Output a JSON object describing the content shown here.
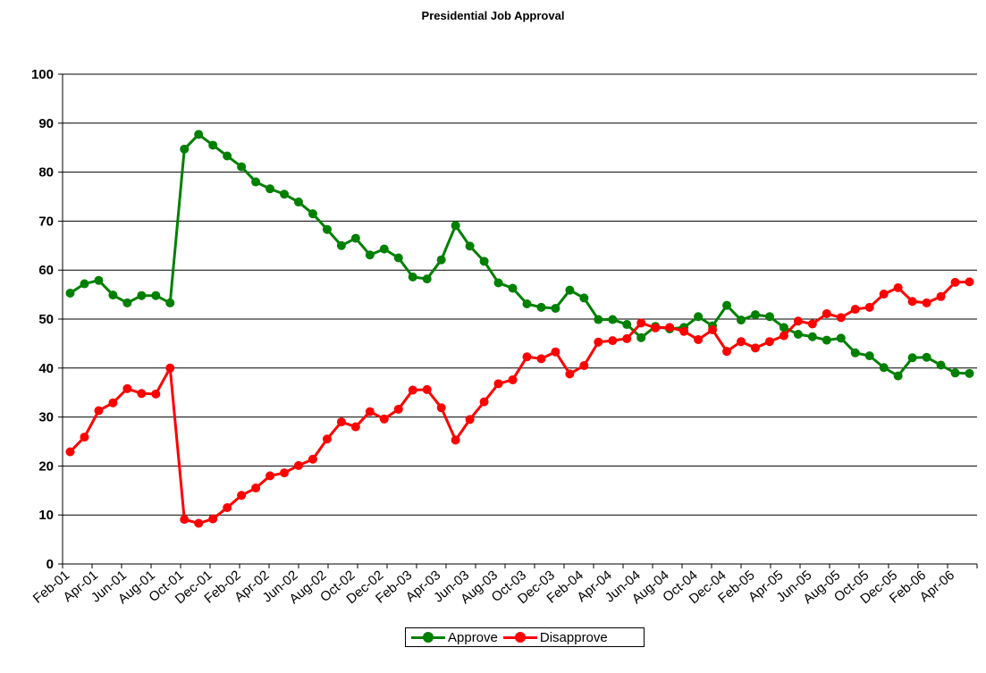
{
  "chart_data": {
    "type": "line",
    "title": "Presidential Job Approval",
    "xlabel": "",
    "ylabel": "",
    "ylim": [
      0,
      100
    ],
    "yticks": [
      0,
      10,
      20,
      30,
      40,
      50,
      60,
      70,
      80,
      90,
      100
    ],
    "grid": "horizontal",
    "legend_position": "bottom",
    "categories": [
      "Feb-01",
      "Mar-01",
      "Apr-01",
      "May-01",
      "Jun-01",
      "Jul-01",
      "Aug-01",
      "Sep-01",
      "Oct-01",
      "Oct-01",
      "Nov-01",
      "Dec-01",
      "Jan-02",
      "Feb-02",
      "Mar-02",
      "Apr-02",
      "May-02",
      "Jun-02",
      "Jul-02",
      "Aug-02",
      "Sep-02",
      "Oct-02",
      "Nov-02",
      "Dec-02",
      "Jan-03",
      "Feb-03",
      "Mar-03",
      "Apr-03",
      "May-03",
      "Jun-03",
      "Jul-03",
      "Aug-03",
      "Sep-03",
      "Oct-03",
      "Nov-03",
      "Dec-03",
      "Jan-04",
      "Feb-04",
      "Mar-04",
      "Apr-04",
      "May-04",
      "Jun-04",
      "Jul-04",
      "Aug-04",
      "Sep-04",
      "Oct-04",
      "Nov-04",
      "Dec-04",
      "Jan-05",
      "Feb-05",
      "Mar-05",
      "Apr-05",
      "May-05",
      "Jun-05",
      "Jul-05",
      "Aug-05",
      "Sep-05",
      "Oct-05",
      "Nov-05",
      "Dec-05",
      "Jan-06",
      "Feb-06",
      "Mar-06",
      "Apr-06"
    ],
    "tick_labels": [
      "Feb-01",
      "Apr-01",
      "Jun-01",
      "Aug-01",
      "Oct-01",
      "Dec-01",
      "Feb-02",
      "Apr-02",
      "Jun-02",
      "Aug-02",
      "Oct-02",
      "Dec-02",
      "Feb-03",
      "Apr-03",
      "Jun-03",
      "Aug-03",
      "Oct-03",
      "Dec-03",
      "Feb-04",
      "Apr-04",
      "Jun-04",
      "Aug-04",
      "Oct-04",
      "Dec-04",
      "Feb-05",
      "Apr-05",
      "Jun-05",
      "Aug-05",
      "Oct-05",
      "Dec-05",
      "Feb-06",
      "Apr-06"
    ],
    "series": [
      {
        "name": "Approve",
        "color": "#008000",
        "values": [
          55.3,
          57.2,
          57.9,
          54.9,
          53.3,
          54.8,
          54.8,
          53.3,
          84.7,
          87.7,
          85.5,
          83.3,
          81.1,
          78.0,
          76.6,
          75.5,
          73.9,
          71.5,
          68.3,
          65.0,
          66.5,
          63.1,
          64.3,
          62.5,
          58.6,
          58.2,
          62.1,
          69.1,
          64.9,
          61.8,
          57.4,
          56.3,
          53.1,
          52.4,
          52.2,
          55.9,
          54.3,
          49.9,
          49.9,
          48.9,
          46.2,
          48.5,
          48.0,
          48.3,
          50.5,
          48.6,
          52.8,
          49.8,
          50.9,
          50.5,
          48.3,
          46.9,
          46.4,
          45.7,
          46.1,
          43.1,
          42.5,
          40.1,
          38.4,
          42.1,
          42.2,
          40.6,
          39.0,
          38.9
        ]
      },
      {
        "name": "Disapprove",
        "color": "#ff0000",
        "values": [
          22.9,
          25.9,
          31.3,
          32.9,
          35.8,
          34.8,
          34.7,
          40.0,
          9.1,
          8.3,
          9.2,
          11.5,
          14.0,
          15.5,
          18.0,
          18.6,
          20.1,
          21.4,
          25.5,
          29.0,
          28.0,
          31.1,
          29.6,
          31.6,
          35.5,
          35.6,
          31.9,
          25.3,
          29.5,
          33.1,
          36.8,
          37.6,
          42.3,
          41.9,
          43.3,
          38.8,
          40.5,
          45.3,
          45.6,
          46.0,
          49.2,
          48.2,
          48.3,
          47.5,
          45.8,
          47.8,
          43.4,
          45.4,
          44.1,
          45.4,
          46.6,
          49.6,
          49.0,
          51.1,
          50.3,
          52.0,
          52.4,
          55.1,
          56.4,
          53.6,
          53.3,
          54.6,
          57.5,
          57.6
        ]
      }
    ]
  }
}
